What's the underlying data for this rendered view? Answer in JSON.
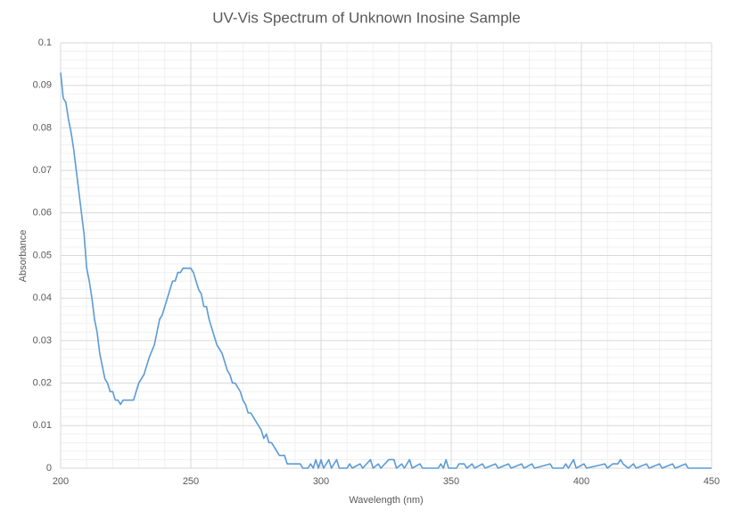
{
  "chart_data": {
    "type": "line",
    "title": "UV-Vis Spectrum of Unknown Inosine Sample",
    "x_label": "Wavelength (nm)",
    "y_label": "Absorbance",
    "x": [
      200,
      201,
      202,
      203,
      204,
      205,
      206,
      207,
      208,
      209,
      210,
      211,
      212,
      213,
      214,
      215,
      216,
      217,
      218,
      219,
      220,
      221,
      222,
      223,
      224,
      226,
      228,
      229,
      230,
      232,
      234,
      236,
      238,
      239,
      240,
      242,
      243,
      244,
      245,
      246,
      247,
      249,
      250,
      251,
      252,
      253,
      254,
      255,
      256,
      257,
      258,
      259,
      260,
      262,
      263,
      264,
      265,
      266,
      267,
      268,
      269,
      270,
      271,
      272,
      273,
      274,
      275,
      276,
      277,
      278,
      279,
      280,
      281,
      282,
      283,
      284,
      286,
      287,
      290,
      292,
      293,
      295,
      296,
      297,
      298,
      299,
      300,
      301,
      303,
      304,
      306,
      307,
      310,
      311,
      312,
      315,
      316,
      319,
      320,
      322,
      323,
      326,
      328,
      329,
      331,
      332,
      334,
      335,
      338,
      339,
      345,
      346,
      347,
      348,
      349,
      352,
      353,
      355,
      356,
      358,
      359,
      362,
      363,
      367,
      368,
      372,
      373,
      377,
      378,
      381,
      382,
      388,
      389,
      393,
      394,
      395,
      397,
      398,
      401,
      402,
      409,
      410,
      412,
      414,
      415,
      416,
      418,
      420,
      421,
      425,
      426,
      430,
      431,
      435,
      436,
      440,
      441,
      450
    ],
    "series": [
      {
        "name": "Absorbance",
        "color": "#5b9bd5",
        "values": [
          0.093,
          0.087,
          0.086,
          0.082,
          0.079,
          0.075,
          0.07,
          0.065,
          0.06,
          0.055,
          0.047,
          0.044,
          0.04,
          0.035,
          0.032,
          0.027,
          0.024,
          0.021,
          0.02,
          0.018,
          0.018,
          0.016,
          0.016,
          0.015,
          0.016,
          0.016,
          0.016,
          0.018,
          0.02,
          0.022,
          0.026,
          0.029,
          0.035,
          0.036,
          0.038,
          0.042,
          0.044,
          0.044,
          0.046,
          0.046,
          0.047,
          0.047,
          0.047,
          0.046,
          0.044,
          0.042,
          0.041,
          0.038,
          0.038,
          0.035,
          0.033,
          0.031,
          0.029,
          0.027,
          0.025,
          0.023,
          0.022,
          0.02,
          0.02,
          0.019,
          0.018,
          0.016,
          0.015,
          0.013,
          0.013,
          0.012,
          0.011,
          0.01,
          0.009,
          0.007,
          0.008,
          0.006,
          0.006,
          0.005,
          0.004,
          0.003,
          0.003,
          0.001,
          0.001,
          0.001,
          0,
          0,
          0.001,
          0,
          0.002,
          0,
          0.002,
          0,
          0.002,
          0,
          0.002,
          0,
          0,
          0.001,
          0,
          0.001,
          0,
          0.002,
          0,
          0.001,
          0,
          0.002,
          0.002,
          0,
          0.001,
          0,
          0.002,
          0,
          0.001,
          0,
          0,
          0.001,
          0,
          0.002,
          0,
          0,
          0.001,
          0.001,
          0,
          0.001,
          0,
          0.001,
          0,
          0.001,
          0,
          0.001,
          0,
          0.001,
          0,
          0.001,
          0,
          0.001,
          0,
          0,
          0.001,
          0,
          0.002,
          0,
          0.001,
          0,
          0.001,
          0,
          0.001,
          0.001,
          0.002,
          0.001,
          0,
          0.001,
          0,
          0.001,
          0,
          0.001,
          0,
          0.001,
          0,
          0.001,
          0,
          0
        ]
      }
    ],
    "xlim": [
      200,
      450
    ],
    "xticks": [
      200,
      250,
      300,
      350,
      400,
      450
    ],
    "ylim": [
      0,
      0.1
    ],
    "yticks": [
      0,
      0.01,
      0.02,
      0.03,
      0.04,
      0.05,
      0.06,
      0.07,
      0.08,
      0.09,
      0.1
    ],
    "grid": true,
    "minor_grid": true
  }
}
